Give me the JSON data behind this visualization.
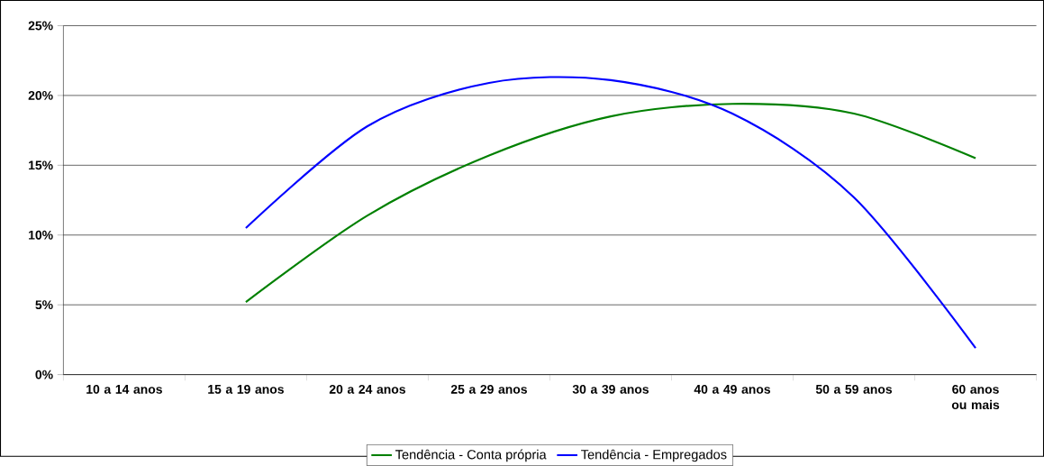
{
  "chart_data": {
    "type": "line",
    "categories": [
      "10 a 14 anos",
      "15 a 19 anos",
      "20 a 24 anos",
      "25 a 29 anos",
      "30 a 39 anos",
      "40 a 49 anos",
      "50 a 59 anos",
      "60 anos ou mais"
    ],
    "series": [
      {
        "name": "Tendência - Conta própria",
        "color": "#008000",
        "values": [
          null,
          5.2,
          11.4,
          15.7,
          18.5,
          19.4,
          18.7,
          15.5
        ]
      },
      {
        "name": "Tendência - Empregados",
        "color": "#0000ff",
        "values": [
          null,
          10.5,
          17.8,
          20.9,
          21.1,
          18.7,
          12.7,
          1.9
        ]
      }
    ],
    "ylim": [
      0,
      25
    ],
    "yticks": [
      {
        "value": 0,
        "label": "0%"
      },
      {
        "value": 5,
        "label": "5%"
      },
      {
        "value": 10,
        "label": "10%"
      },
      {
        "value": 15,
        "label": "15%"
      },
      {
        "value": 20,
        "label": "20%"
      },
      {
        "value": 25,
        "label": "25%"
      }
    ],
    "grid": "y",
    "legend": "bottom",
    "marker": "none",
    "line_style": "solid"
  }
}
